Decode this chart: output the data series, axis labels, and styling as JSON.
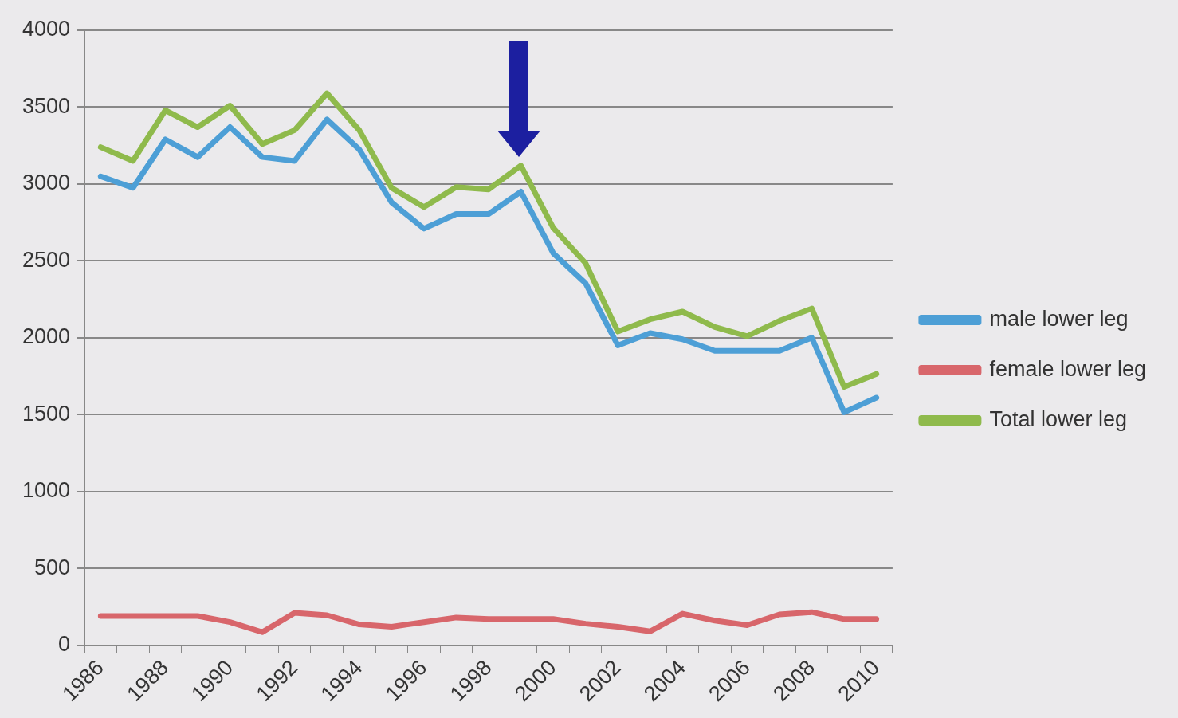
{
  "chart_data": {
    "type": "line",
    "categories": [
      "1986",
      null,
      "1988",
      null,
      "1990",
      null,
      "1992",
      null,
      "1994",
      null,
      "1996",
      null,
      "1998",
      null,
      "2000",
      null,
      "2002",
      null,
      "2004",
      null,
      "2006",
      null,
      "2008",
      null,
      "2010"
    ],
    "series": [
      {
        "name": "male lower leg",
        "color": "#4d9fd6",
        "values": [
          3050,
          2975,
          3290,
          3175,
          3370,
          3175,
          3150,
          3420,
          3225,
          2880,
          2710,
          2805,
          2805,
          2950,
          2550,
          2355,
          1950,
          2030,
          1990,
          1915,
          1915,
          1915,
          2000,
          1515,
          1610
        ]
      },
      {
        "name": "female lower leg",
        "color": "#d8666b",
        "values": [
          190,
          190,
          190,
          190,
          150,
          85,
          210,
          195,
          135,
          120,
          150,
          180,
          170,
          170,
          170,
          140,
          120,
          90,
          205,
          160,
          130,
          200,
          215,
          170,
          170
        ]
      },
      {
        "name": "Total lower leg",
        "color": "#8fba4c",
        "values": [
          3240,
          3150,
          3480,
          3370,
          3510,
          3260,
          3350,
          3590,
          3350,
          2975,
          2850,
          2980,
          2965,
          3120,
          2715,
          2485,
          2040,
          2120,
          2170,
          2070,
          2010,
          2110,
          2190,
          1680,
          1765
        ]
      }
    ],
    "ylim": [
      0,
      4000
    ],
    "yticks": [
      0,
      500,
      1000,
      1500,
      2000,
      2500,
      3000,
      3500,
      4000
    ],
    "grid": "y",
    "legend": "right",
    "marker": "none",
    "line_style": "solid"
  }
}
